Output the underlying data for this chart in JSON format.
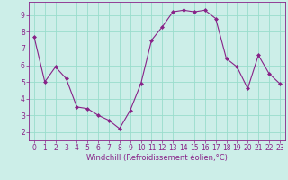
{
  "x": [
    0,
    1,
    2,
    3,
    4,
    5,
    6,
    7,
    8,
    9,
    10,
    11,
    12,
    13,
    14,
    15,
    16,
    17,
    18,
    19,
    20,
    21,
    22,
    23
  ],
  "y": [
    7.7,
    5.0,
    5.9,
    5.2,
    3.5,
    3.4,
    3.0,
    2.7,
    2.2,
    3.3,
    4.9,
    7.5,
    8.3,
    9.2,
    9.3,
    9.2,
    9.3,
    8.8,
    6.4,
    5.9,
    4.6,
    6.6,
    5.5,
    4.9
  ],
  "line_color": "#882288",
  "marker": "D",
  "marker_size": 2.0,
  "bg_color": "#cceee8",
  "grid_color": "#99ddcc",
  "xlabel": "Windchill (Refroidissement éolien,°C)",
  "xlabel_color": "#882288",
  "tick_color": "#882288",
  "xlim": [
    -0.5,
    23.5
  ],
  "ylim": [
    1.5,
    9.8
  ],
  "yticks": [
    2,
    3,
    4,
    5,
    6,
    7,
    8,
    9
  ],
  "xticks": [
    0,
    1,
    2,
    3,
    4,
    5,
    6,
    7,
    8,
    9,
    10,
    11,
    12,
    13,
    14,
    15,
    16,
    17,
    18,
    19,
    20,
    21,
    22,
    23
  ],
  "tick_fontsize": 5.5,
  "xlabel_fontsize": 6.0,
  "linewidth": 0.8
}
